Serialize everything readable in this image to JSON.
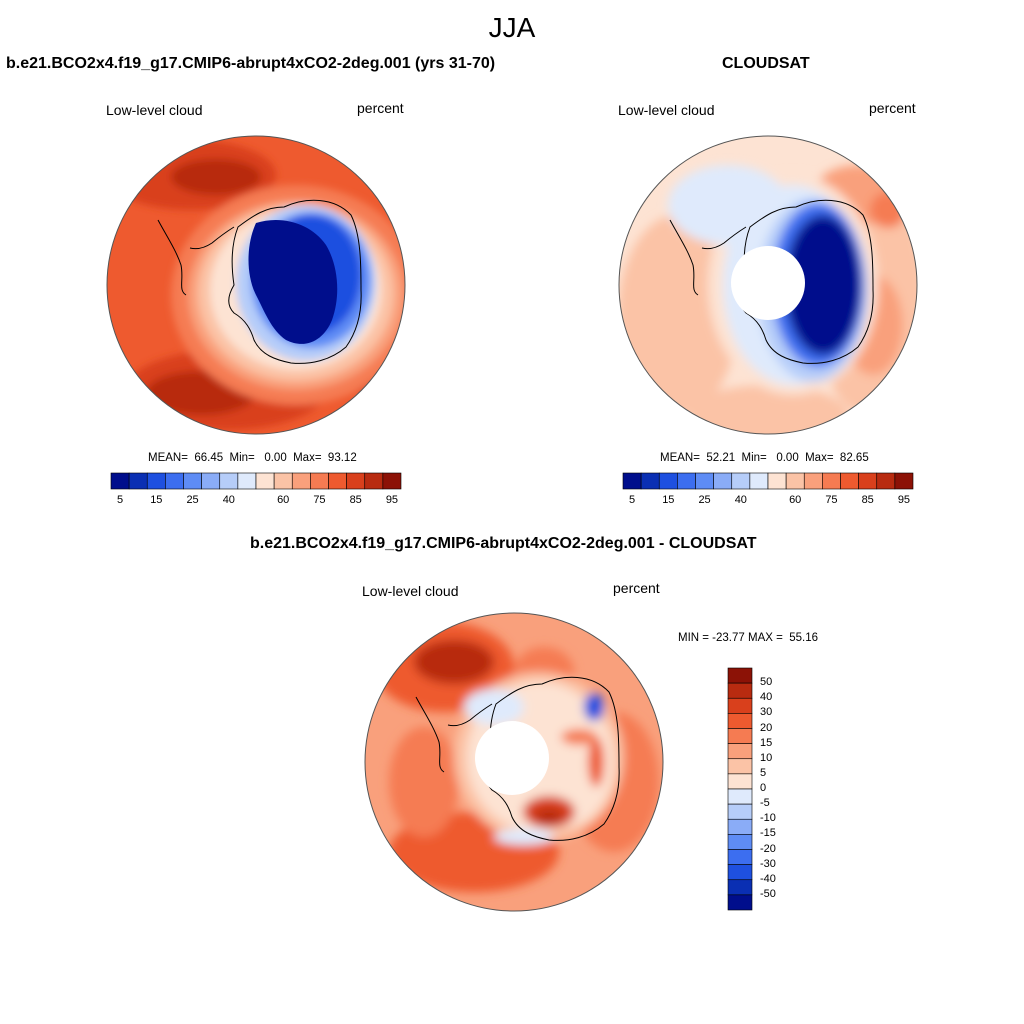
{
  "figure": {
    "season": "JJA"
  },
  "panels": [
    {
      "title": "b.e21.BCO2x4.f19_g17.CMIP6-abrupt4xCO2-2deg.001 (yrs 31-70)",
      "left_label": "Low-level cloud",
      "right_label": "percent",
      "stats": "MEAN=  66.45  Min=   0.00  Max=  93.12"
    },
    {
      "title": "CLOUDSAT",
      "left_label": "Low-level cloud",
      "right_label": "percent",
      "stats": "MEAN=  52.21  Min=   0.00  Max=  82.65"
    },
    {
      "title": "b.e21.BCO2x4.f19_g17.CMIP6-abrupt4xCO2-2deg.001 - CLOUDSAT",
      "left_label": "Low-level cloud",
      "right_label": "percent",
      "stats": "MIN = -23.77 MAX =  55.16"
    }
  ],
  "abs_colorbar": {
    "labels": [
      "5",
      "15",
      "25",
      "40",
      "60",
      "75",
      "85",
      "95"
    ],
    "colors": [
      "#000e8c",
      "#0a2fb3",
      "#1e50e0",
      "#3c6ef0",
      "#5e8cf5",
      "#8aacf7",
      "#b6cdf9",
      "#dfeafc",
      "#fde3d3",
      "#fbc3a6",
      "#f9a07c",
      "#f57b52",
      "#ee5a2f",
      "#d9401c",
      "#b82b10",
      "#8c1206"
    ]
  },
  "diff_colorbar": {
    "labels": [
      "50",
      "40",
      "30",
      "20",
      "15",
      "10",
      "5",
      "0",
      "-5",
      "-10",
      "-15",
      "-20",
      "-30",
      "-40",
      "-50"
    ],
    "colors": [
      "#8c1206",
      "#b82b10",
      "#d9401c",
      "#ee5a2f",
      "#f57b52",
      "#f9a07c",
      "#fbc3a6",
      "#fde3d3",
      "#dfeafc",
      "#b6cdf9",
      "#8aacf7",
      "#5e8cf5",
      "#3c6ef0",
      "#1e50e0",
      "#0a2fb3",
      "#000e8c"
    ]
  }
}
